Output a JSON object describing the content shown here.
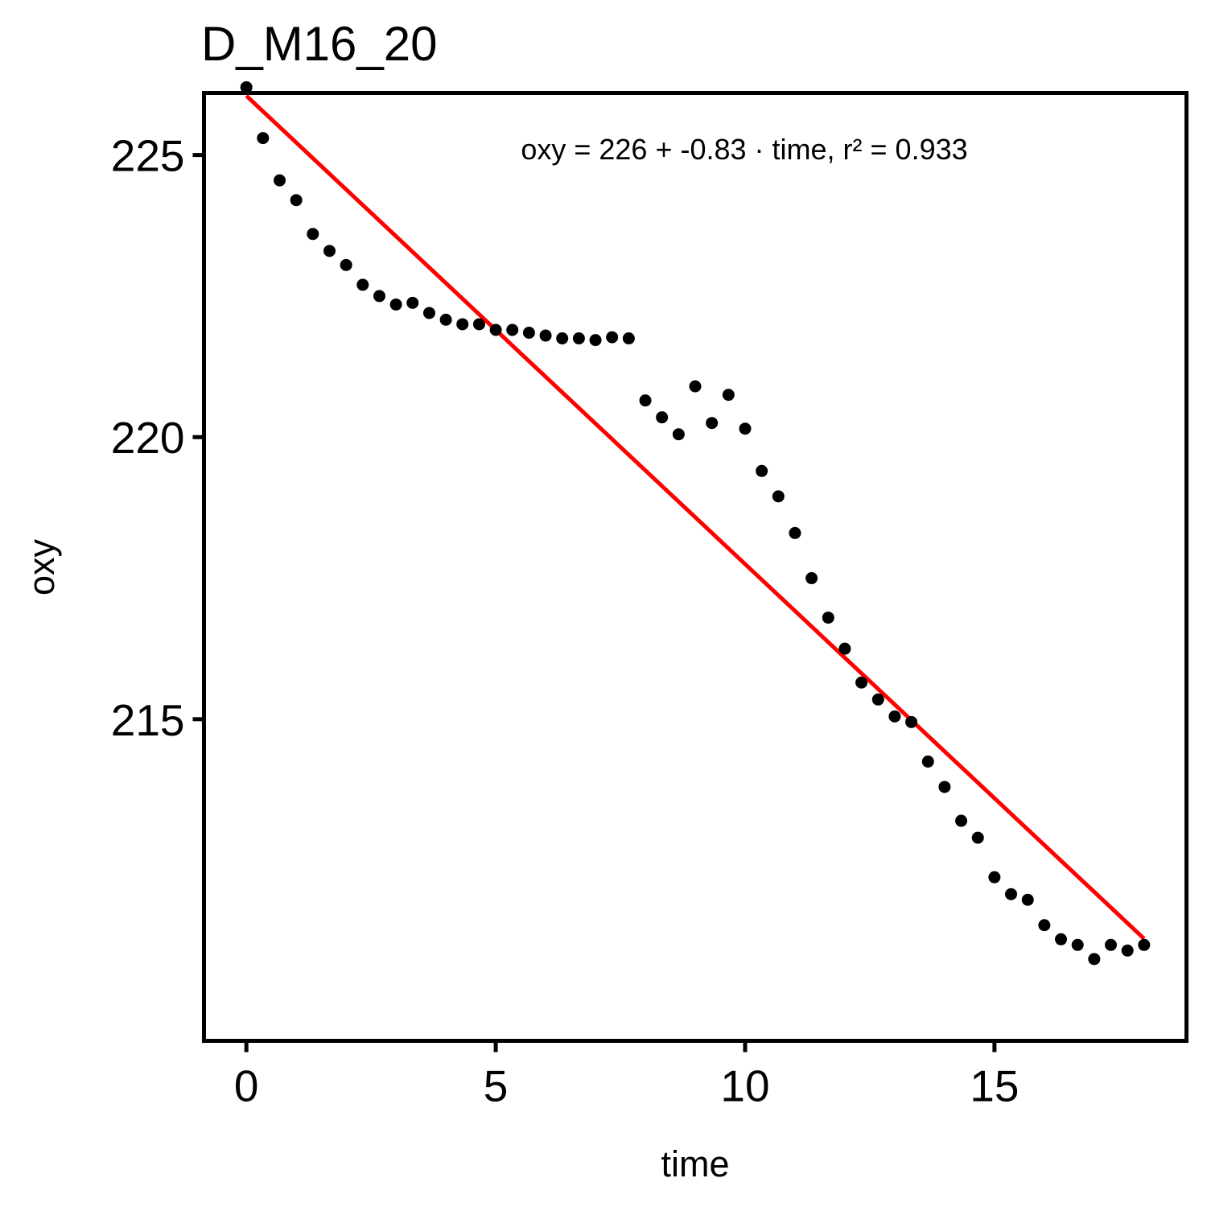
{
  "chart_data": {
    "type": "scatter",
    "title": "D_M16_20",
    "xlabel": "time",
    "ylabel": "oxy",
    "xlim": [
      -0.85,
      18.85
    ],
    "ylim": [
      209.3,
      226.1
    ],
    "xticks": [
      0,
      5,
      10,
      15
    ],
    "yticks": [
      215,
      220,
      225
    ],
    "grid": false,
    "legend": "none",
    "annotation": "oxy = 226 + -0.83 · time,  r² = 0.933",
    "point_color": "#000000",
    "fit_color": "#ff0000",
    "series": [
      {
        "x": [
          0,
          0.333,
          0.667,
          1,
          1.333,
          1.667,
          2,
          2.333,
          2.667,
          3,
          3.333,
          3.667,
          4,
          4.333,
          4.667,
          5,
          5.333,
          5.667,
          6,
          6.333,
          6.667,
          7,
          7.333,
          7.667,
          8,
          8.333,
          8.667,
          9,
          9.333,
          9.667,
          10,
          10.333,
          10.667,
          11,
          11.333,
          11.667,
          12,
          12.333,
          12.667,
          13,
          13.333,
          13.667,
          14,
          14.333,
          14.667,
          15,
          15.333,
          15.667,
          16,
          16.333,
          16.667,
          17,
          17.333,
          17.667,
          18
        ],
        "y": [
          226.2,
          225.3,
          224.55,
          224.2,
          223.6,
          223.3,
          223.05,
          222.7,
          222.5,
          222.35,
          222.38,
          222.2,
          222.08,
          222.0,
          222.0,
          221.9,
          221.9,
          221.85,
          221.8,
          221.75,
          221.75,
          221.72,
          221.77,
          221.75,
          220.65,
          220.35,
          220.05,
          220.9,
          220.25,
          220.75,
          220.15,
          219.4,
          218.95,
          218.3,
          217.5,
          216.8,
          216.25,
          215.65,
          215.35,
          215.05,
          214.95,
          214.25,
          213.8,
          213.2,
          212.9,
          212.2,
          211.9,
          211.8,
          211.35,
          211.1,
          211.0,
          210.75,
          211.0,
          210.9,
          211.0
        ]
      }
    ],
    "fit": {
      "intercept": 226.05,
      "slope": -0.83,
      "x": [
        0,
        18
      ]
    }
  }
}
